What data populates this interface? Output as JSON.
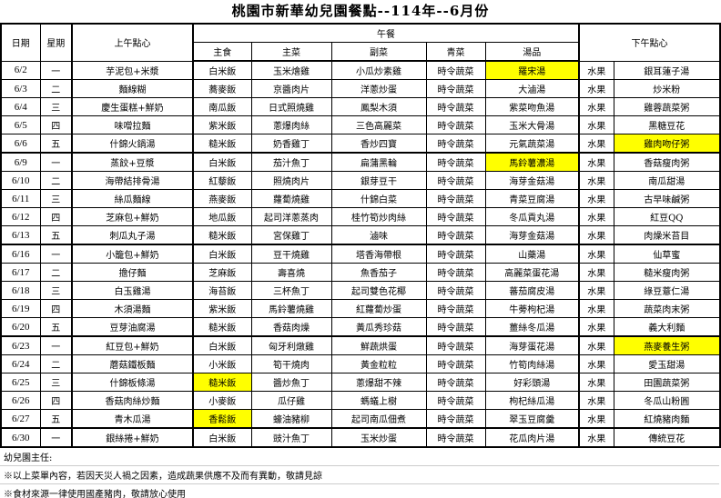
{
  "title": "桃園市新華幼兒園餐點--114年--6月份",
  "headers": {
    "date": "日期",
    "weekday": "星期",
    "morning": "上午點心",
    "lunch": "午餐",
    "staple": "主食",
    "main": "主菜",
    "side": "副菜",
    "veg": "青菜",
    "soup": "湯品",
    "afternoon": "下午點心"
  },
  "highlight_color": "#ffff00",
  "rows": [
    {
      "cells": [
        "6/2",
        "一",
        "芋泥包+米漿",
        "白米飯",
        "玉米燴雞",
        "小瓜炒素雞",
        "時令蔬菜",
        "羅宋湯",
        "水果",
        "銀耳蓮子湯"
      ],
      "highlight": [
        7
      ]
    },
    {
      "cells": [
        "6/3",
        "二",
        "麵線糊",
        "蕎麥飯",
        "京醬肉片",
        "洋蔥炒蛋",
        "時令蔬菜",
        "大滷湯",
        "水果",
        "炒米粉"
      ],
      "highlight": []
    },
    {
      "cells": [
        "6/4",
        "三",
        "慶生蛋糕+鮮奶",
        "南瓜飯",
        "日式照燒雞",
        "鳳梨木須",
        "時令蔬菜",
        "紫菜吻魚湯",
        "水果",
        "雞蓉蔬菜粥"
      ],
      "highlight": []
    },
    {
      "cells": [
        "6/5",
        "四",
        "味噌拉麵",
        "紫米飯",
        "蔥爆肉絲",
        "三色高麗菜",
        "時令蔬菜",
        "玉米大骨湯",
        "水果",
        "黑糖豆花"
      ],
      "highlight": []
    },
    {
      "cells": [
        "6/6",
        "五",
        "什錦火鍋湯",
        "糙米飯",
        "奶香雞丁",
        "香炒四寶",
        "時令蔬菜",
        "元氣蔬菜湯",
        "水果",
        "雞肉吻仔粥"
      ],
      "highlight": [
        9
      ],
      "week_end": true
    },
    {
      "cells": [
        "6/9",
        "一",
        "蒸餃+豆漿",
        "白米飯",
        "茄汁魚丁",
        "扁蒲黑輪",
        "時令蔬菜",
        "馬鈴薯濃湯",
        "水果",
        "香菇瘦肉粥"
      ],
      "highlight": [
        7
      ]
    },
    {
      "cells": [
        "6/10",
        "二",
        "海帶結排骨湯",
        "紅藜飯",
        "照燒肉片",
        "銀芽豆干",
        "時令蔬菜",
        "海芽金菇湯",
        "水果",
        "南瓜甜湯"
      ],
      "highlight": []
    },
    {
      "cells": [
        "6/11",
        "三",
        "絲瓜麵線",
        "燕麥飯",
        "蘿蔔燒雞",
        "什錦白菜",
        "時令蔬菜",
        "青菜豆腐湯",
        "水果",
        "古早味鹹粥"
      ],
      "highlight": []
    },
    {
      "cells": [
        "6/12",
        "四",
        "芝麻包+鮮奶",
        "地瓜飯",
        "起司洋蔥蒸肉",
        "桂竹筍炒肉絲",
        "時令蔬菜",
        "冬瓜貢丸湯",
        "水果",
        "紅豆QQ"
      ],
      "highlight": []
    },
    {
      "cells": [
        "6/13",
        "五",
        "刺瓜丸子湯",
        "糙米飯",
        "宮保雞丁",
        "滷味",
        "時令蔬菜",
        "海芽金菇湯",
        "水果",
        "肉燥米苔目"
      ],
      "highlight": [],
      "week_end": true
    },
    {
      "cells": [
        "6/16",
        "一",
        "小籠包+鮮奶",
        "白米飯",
        "豆干燒雞",
        "塔香海帶根",
        "時令蔬菜",
        "山藥湯",
        "水果",
        "仙草蜜"
      ],
      "highlight": []
    },
    {
      "cells": [
        "6/17",
        "二",
        "擔仔麵",
        "芝麻飯",
        "壽喜燒",
        "魚香茄子",
        "時令蔬菜",
        "高麗菜蛋花湯",
        "水果",
        "糙米瘦肉粥"
      ],
      "highlight": []
    },
    {
      "cells": [
        "6/18",
        "三",
        "白玉雞湯",
        "海苔飯",
        "三杯魚丁",
        "起司雙色花椰",
        "時令蔬菜",
        "蕃茄腐皮湯",
        "水果",
        "綠豆薏仁湯"
      ],
      "highlight": []
    },
    {
      "cells": [
        "6/19",
        "四",
        "木須湯麵",
        "紫米飯",
        "馬鈴薯燒雞",
        "紅蘿蔔炒蛋",
        "時令蔬菜",
        "牛蒡枸杞湯",
        "水果",
        "蔬菜肉末粥"
      ],
      "highlight": []
    },
    {
      "cells": [
        "6/20",
        "五",
        "豆芽油腐湯",
        "糙米飯",
        "香菇肉燥",
        "黃瓜秀珍菇",
        "時令蔬菜",
        "薑絲冬瓜湯",
        "水果",
        "義大利麵"
      ],
      "highlight": [],
      "week_end": true
    },
    {
      "cells": [
        "6/23",
        "一",
        "紅豆包+鮮奶",
        "白米飯",
        "匈牙利燉雞",
        "鮮蔬烘蛋",
        "時令蔬菜",
        "海芽蛋花湯",
        "水果",
        "燕麥養生粥"
      ],
      "highlight": [
        9
      ]
    },
    {
      "cells": [
        "6/24",
        "二",
        "蘑菇鐵板麵",
        "小米飯",
        "筍干燒肉",
        "黃金粒粒",
        "時令蔬菜",
        "竹筍肉絲湯",
        "水果",
        "愛玉甜湯"
      ],
      "highlight": []
    },
    {
      "cells": [
        "6/25",
        "三",
        "什錦板條湯",
        "糙米飯",
        "醬炒魚丁",
        "蔥爆甜不辣",
        "時令蔬菜",
        "好彩頭湯",
        "水果",
        "田園蔬菜粥"
      ],
      "highlight": [
        3
      ]
    },
    {
      "cells": [
        "6/26",
        "四",
        "香菇肉絲炒麵",
        "小麥飯",
        "瓜仔雞",
        "螞蟻上樹",
        "時令蔬菜",
        "枸杞絲瓜湯",
        "水果",
        "冬瓜山粉圓"
      ],
      "highlight": []
    },
    {
      "cells": [
        "6/27",
        "五",
        "青木瓜湯",
        "香鬆飯",
        "蠔油豬柳",
        "起司南瓜佃煮",
        "時令蔬菜",
        "翠玉豆腐羹",
        "水果",
        "紅燒豬肉麵"
      ],
      "highlight": [
        3
      ],
      "week_end": true
    },
    {
      "cells": [
        "6/30",
        "一",
        "銀絲捲+鮮奶",
        "白米飯",
        "豉汁魚丁",
        "玉米炒蛋",
        "時令蔬菜",
        "花瓜肉片湯",
        "水果",
        "傳統豆花"
      ],
      "highlight": []
    }
  ],
  "footer": {
    "director": "幼兒園主任:",
    "note1": "※以上菜單內容，若因天災人禍之因素，造成蔬果供應不及而有異動，敬請見諒",
    "note2": "※食材來源一律使用國產豬肉，敬請放心使用"
  }
}
